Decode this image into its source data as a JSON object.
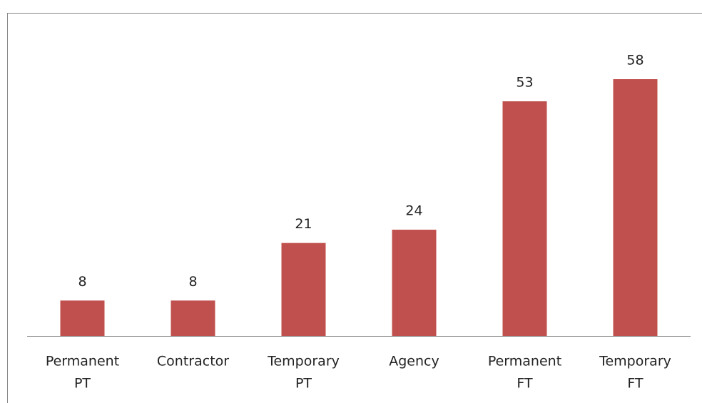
{
  "chart_data": {
    "type": "bar",
    "categories": [
      [
        "Permanent",
        "PT"
      ],
      [
        "Contractor"
      ],
      [
        "Temporary",
        "PT"
      ],
      [
        "Agency"
      ],
      [
        "Permanent",
        "FT"
      ],
      [
        "Temporary",
        "FT"
      ]
    ],
    "values": [
      8,
      8,
      21,
      24,
      53,
      58
    ],
    "color": "#c0504d"
  }
}
